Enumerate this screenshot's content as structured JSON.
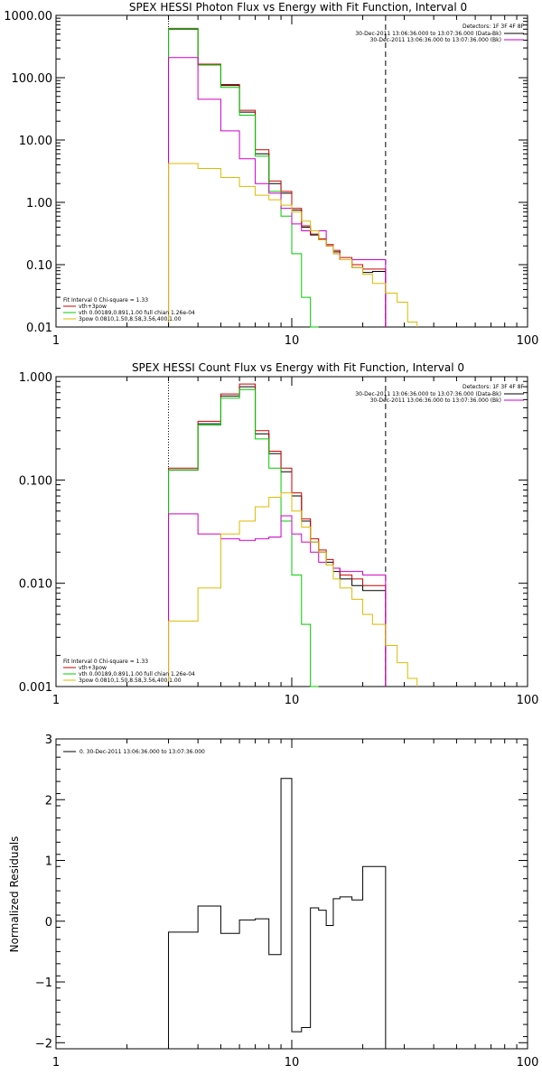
{
  "chart_data": [
    {
      "type": "line",
      "title": "SPEX HESSI Photon Flux vs Energy with Fit Function, Interval 0",
      "xlim": [
        1,
        100
      ],
      "ylim": [
        0.01,
        1000
      ],
      "xscale": "log",
      "yscale": "log",
      "xticks": [
        1,
        10,
        100
      ],
      "xtick_labels": [
        "1",
        "10",
        "100"
      ],
      "yticks": [
        0.01,
        0.1,
        1,
        10,
        100,
        1000
      ],
      "ytick_labels": [
        "0.01",
        "0.10",
        "1.00",
        "10.00",
        "100.00",
        "1000.00"
      ],
      "ylabel": "",
      "vlines": [
        {
          "x": 3.0,
          "style": "dotted",
          "color": "#000000"
        },
        {
          "x": 25.0,
          "style": "dashed",
          "color": "#000000"
        }
      ],
      "legend_topright": {
        "line1": "Detectors: 1F 3F 4F 8F",
        "line2": "30-Dec-2011 13:06:36.000 to 13:07:36.000 (Data-Bk)",
        "line3": "30-Dec-2011 13:06:36.000 to 13:07:36.000 (Bk)",
        "line2_color": "#000000",
        "line3_color": "#cc00cc"
      },
      "legend_bottomleft": {
        "line1": "Fit Interval 0   Chi-square = 1.33",
        "line2": "vth+3pow",
        "line3": "vth 0.00189,0.891,1.00   full chian 1.26e-04",
        "line4": "3pow 0.0810,1.50,8.58,3.56,400,1.00",
        "line2_color": "#cc0000",
        "line3_color": "#00cc00",
        "line4_color": "#ddbb00"
      },
      "edges": [
        3.0,
        4.0,
        5.0,
        6.0,
        7.0,
        8.0,
        9.0,
        10.0,
        11.0,
        12.0,
        13.0,
        14.0,
        15.0,
        16.0,
        18.0,
        20.0,
        22.0,
        25.0,
        28.0,
        31.0,
        34.0
      ],
      "series": [
        {
          "name": "",
          "color": "#000000",
          "values": [
            600,
            160,
            75,
            28,
            6.0,
            2.0,
            1.4,
            0.75,
            0.4,
            0.3,
            0.25,
            0.2,
            0.16,
            0.12,
            0.09,
            0.075,
            0.078,
            null,
            null,
            null
          ]
        },
        {
          "name": "",
          "color": "#cc0000",
          "values": [
            620,
            165,
            78,
            30,
            7.0,
            2.2,
            1.5,
            0.8,
            0.42,
            0.31,
            0.26,
            0.21,
            0.17,
            0.13,
            0.1,
            0.085,
            0.085,
            null,
            null,
            null
          ]
        },
        {
          "name": "",
          "color": "#00cc00",
          "values": [
            610,
            160,
            70,
            25,
            5.5,
            1.5,
            0.6,
            0.15,
            0.03,
            0.008,
            null,
            null,
            null,
            null,
            null,
            null,
            null,
            null,
            null,
            null
          ]
        },
        {
          "name": "",
          "color": "#cc00cc",
          "values": [
            210,
            45,
            14,
            5.0,
            2.0,
            1.4,
            0.8,
            0.45,
            0.35,
            0.35,
            0.35,
            0.2,
            0.15,
            0.12,
            0.12,
            0.12,
            0.12,
            null,
            null,
            null
          ]
        },
        {
          "name": "",
          "color": "#ddbb00",
          "values": [
            4.2,
            3.5,
            2.5,
            1.8,
            1.3,
            1.1,
            0.9,
            0.7,
            0.5,
            0.35,
            0.25,
            0.2,
            0.15,
            0.12,
            0.09,
            0.07,
            0.05,
            0.035,
            0.025,
            0.012
          ]
        }
      ]
    },
    {
      "type": "line",
      "title": "SPEX HESSI Count Flux vs Energy with Fit Function, Interval 0",
      "xlim": [
        1,
        100
      ],
      "ylim": [
        0.001,
        1
      ],
      "xscale": "log",
      "yscale": "log",
      "xticks": [
        1,
        10,
        100
      ],
      "xtick_labels": [
        "1",
        "10",
        "100"
      ],
      "yticks": [
        0.001,
        0.01,
        0.1,
        1
      ],
      "ytick_labels": [
        "0.001",
        "0.010",
        "0.100",
        "1.000"
      ],
      "ylabel": "",
      "vlines": [
        {
          "x": 3.0,
          "style": "dotted",
          "color": "#000000"
        },
        {
          "x": 25.0,
          "style": "dashed",
          "color": "#000000"
        }
      ],
      "legend_topright": {
        "line1": "Detectors: 1F 3F 4F 8F",
        "line2": "30-Dec-2011 13:06:36.000 to 13:07:36.000 (Data-Bk)",
        "line3": "30-Dec-2011 13:06:36.000 to 13:07:36.000 (Bk)",
        "line2_color": "#000000",
        "line3_color": "#cc00cc"
      },
      "legend_bottomleft": {
        "line1": "Fit Interval 0   Chi-square = 1.33",
        "line2": "vth+3pow",
        "line3": "vth 0.00189,0.891,1.00   full chian 1.26e-04",
        "line4": "3pow 0.0810,1.50,8.58,3.56,400,1.00",
        "line2_color": "#cc0000",
        "line3_color": "#00cc00",
        "line4_color": "#ddbb00"
      },
      "edges": [
        3.0,
        4.0,
        5.0,
        6.0,
        7.0,
        8.0,
        9.0,
        10.0,
        11.0,
        12.0,
        13.0,
        14.0,
        15.0,
        16.0,
        18.0,
        20.0,
        22.0,
        25.0,
        28.0,
        31.0,
        34.0
      ],
      "series": [
        {
          "name": "",
          "color": "#000000",
          "values": [
            0.125,
            0.35,
            0.65,
            0.8,
            0.28,
            0.18,
            0.12,
            0.07,
            0.04,
            0.025,
            0.02,
            0.016,
            0.013,
            0.011,
            0.0095,
            0.0085,
            0.0085,
            null,
            null,
            null
          ]
        },
        {
          "name": "",
          "color": "#cc0000",
          "values": [
            0.13,
            0.37,
            0.68,
            0.85,
            0.3,
            0.19,
            0.13,
            0.075,
            0.042,
            0.027,
            0.021,
            0.017,
            0.014,
            0.012,
            0.011,
            0.0095,
            0.0095,
            null,
            null,
            null
          ]
        },
        {
          "name": "",
          "color": "#00cc00",
          "values": [
            0.125,
            0.34,
            0.62,
            0.75,
            0.25,
            0.13,
            0.04,
            0.012,
            0.004,
            0.001,
            null,
            null,
            null,
            null,
            null,
            null,
            null,
            null,
            null,
            null
          ]
        },
        {
          "name": "",
          "color": "#cc00cc",
          "values": [
            0.047,
            0.03,
            0.027,
            0.026,
            0.027,
            0.028,
            0.045,
            0.03,
            0.025,
            0.02,
            0.016,
            0.015,
            0.014,
            0.013,
            0.013,
            0.012,
            0.012,
            null,
            null,
            null
          ]
        },
        {
          "name": "",
          "color": "#ddbb00",
          "values": [
            0.0043,
            0.009,
            0.03,
            0.04,
            0.055,
            0.068,
            0.075,
            0.05,
            0.035,
            0.025,
            0.02,
            0.015,
            0.011,
            0.009,
            0.007,
            0.005,
            0.004,
            0.0025,
            0.0017,
            0.0012
          ]
        }
      ]
    },
    {
      "type": "line",
      "title": "",
      "xlim": [
        1,
        100
      ],
      "ylim": [
        -2.1,
        3
      ],
      "xscale": "log",
      "yscale": "linear",
      "xticks": [
        1,
        10,
        100
      ],
      "xtick_labels": [
        "1",
        "10",
        "100"
      ],
      "yticks": [
        -2,
        -1,
        0,
        1,
        2,
        3
      ],
      "ytick_labels": [
        "−2",
        "−1",
        "0",
        "1",
        "2",
        "3"
      ],
      "ylabel": "Normalized Residuals",
      "legend_topleft": {
        "line1": "0. 30-Dec-2011 13:06:36.000 to 13:07:36.000"
      },
      "edges": [
        3.0,
        4.0,
        5.0,
        6.0,
        7.0,
        8.0,
        9.0,
        10.0,
        11.0,
        12.0,
        13.0,
        14.0,
        15.0,
        16.0,
        18.0,
        20.0,
        22.0,
        25.0
      ],
      "series": [
        {
          "name": "",
          "color": "#000000",
          "values": [
            -0.18,
            0.25,
            -0.2,
            0.02,
            0.04,
            -0.55,
            2.35,
            -1.82,
            -1.75,
            0.22,
            0.18,
            -0.07,
            0.37,
            0.4,
            0.35,
            0.9,
            0.9
          ]
        }
      ]
    }
  ]
}
